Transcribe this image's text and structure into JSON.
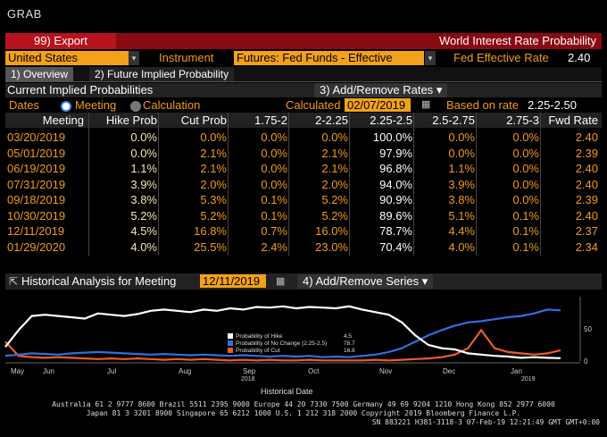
{
  "window": {
    "title": "GRAB"
  },
  "toolbar": {
    "export_label": "99) Export",
    "page_title": "World Interest Rate Probability"
  },
  "filters": {
    "country": "United States",
    "instrument_label": "Instrument",
    "instrument": "Futures: Fed Funds - Effective",
    "fed_rate_label": "Fed Effective Rate",
    "fed_rate": "2.40"
  },
  "tabs": [
    {
      "label": "1) Overview"
    },
    {
      "label": "2) Future Implied Probability"
    }
  ],
  "section": {
    "title": "Current Implied Probabilities",
    "add_remove": "3) Add/Remove Rates"
  },
  "options": {
    "dates_label": "Dates",
    "meeting_label": "Meeting",
    "calculation_label": "Calculation",
    "calculated_label": "Calculated",
    "calculated_date": "02/07/2019",
    "based_label": "Based on rate",
    "based_value": "2.25-2.50"
  },
  "table": {
    "columns": [
      "Meeting",
      "Hike Prob",
      "Cut Prob",
      "1.75-2",
      "2-2.25",
      "2.25-2.5",
      "2.5-2.75",
      "2.75-3",
      "Fwd Rate"
    ],
    "rows": [
      [
        "03/20/2019",
        "0.0%",
        "0.0%",
        "0.0%",
        "0.0%",
        "100.0%",
        "0.0%",
        "0.0%",
        "2.40"
      ],
      [
        "05/01/2019",
        "0.0%",
        "2.1%",
        "0.0%",
        "2.1%",
        "97.9%",
        "0.0%",
        "0.0%",
        "2.39"
      ],
      [
        "06/19/2019",
        "1.1%",
        "2.1%",
        "0.0%",
        "2.1%",
        "96.8%",
        "1.1%",
        "0.0%",
        "2.40"
      ],
      [
        "07/31/2019",
        "3.9%",
        "2.0%",
        "0.0%",
        "2.0%",
        "94.0%",
        "3.9%",
        "0.0%",
        "2.40"
      ],
      [
        "09/18/2019",
        "3.8%",
        "5.3%",
        "0.1%",
        "5.2%",
        "90.9%",
        "3.8%",
        "0.0%",
        "2.39"
      ],
      [
        "10/30/2019",
        "5.2%",
        "5.2%",
        "0.1%",
        "5.2%",
        "89.6%",
        "5.1%",
        "0.1%",
        "2.40"
      ],
      [
        "12/11/2019",
        "4.5%",
        "16.8%",
        "0.7%",
        "16.0%",
        "78.7%",
        "4.4%",
        "0.1%",
        "2.37"
      ],
      [
        "01/29/2020",
        "4.0%",
        "25.5%",
        "2.4%",
        "23.0%",
        "70.4%",
        "4.0%",
        "0.1%",
        "2.34"
      ]
    ]
  },
  "history": {
    "title": "Historical Analysis for Meeting",
    "meeting_date": "12/11/2019",
    "add_remove": "4) Add/Remove Series"
  },
  "chart_data": {
    "type": "line",
    "xlabel": "Historical Date",
    "x_ticks": [
      "May",
      "Jun",
      "Jul",
      "Aug",
      "Sep",
      "Oct",
      "Nov",
      "Dec",
      "Jan"
    ],
    "x_year_labels": [
      "2018",
      "2019"
    ],
    "y_ticks": [
      "50",
      "0"
    ],
    "ylim": [
      0,
      100
    ],
    "series": [
      {
        "name": "Probability of Hike",
        "last": "4.5",
        "color": "#ffffff",
        "values": [
          22,
          48,
          70,
          72,
          70,
          68,
          66,
          74,
          72,
          70,
          73,
          78,
          80,
          78,
          76,
          80,
          78,
          82,
          80,
          84,
          83,
          85,
          82,
          84,
          83,
          82,
          85,
          80,
          76,
          72,
          60,
          40,
          25,
          20,
          18,
          12,
          10,
          8,
          7,
          5,
          6,
          5,
          4.5
        ]
      },
      {
        "name": "Probability of No Change (2.25-2.5)",
        "last": "78.7",
        "color": "#2f6fe0",
        "values": [
          8,
          10,
          12,
          11,
          10,
          12,
          13,
          14,
          13,
          12,
          11,
          10,
          11,
          10,
          9,
          10,
          9,
          8,
          9,
          8,
          7,
          8,
          7,
          8,
          6,
          7,
          6,
          8,
          10,
          14,
          20,
          30,
          40,
          48,
          55,
          60,
          62,
          65,
          68,
          70,
          74,
          80,
          78.7
        ]
      },
      {
        "name": "Probability of Cut",
        "last": "16.8",
        "color": "#f05a28",
        "values": [
          30,
          8,
          6,
          5,
          6,
          5,
          4,
          3,
          4,
          3,
          4,
          3,
          2,
          3,
          2,
          3,
          2,
          1,
          2,
          1,
          2,
          1,
          1,
          2,
          1,
          1,
          1,
          1,
          2,
          1,
          2,
          3,
          4,
          6,
          10,
          20,
          48,
          20,
          14,
          12,
          10,
          12,
          16.8
        ]
      }
    ]
  },
  "footer": {
    "line1": "Australia 61 2 9777 8600 Brazil 5511 2395 9000 Europe 44 20 7330 7500 Germany 49 69 9204 1210 Hong Kong 852 2977 6000",
    "line2": "Japan 81 3 3201 8900        Singapore 65 6212 1000        U.S. 1 212 318 2000              Copyright 2019 Bloomberg Finance L.P.",
    "line3": "SN 883221 H381-3118-3 07-Feb-19 12:21:49 GMT  GMT+0:00"
  }
}
